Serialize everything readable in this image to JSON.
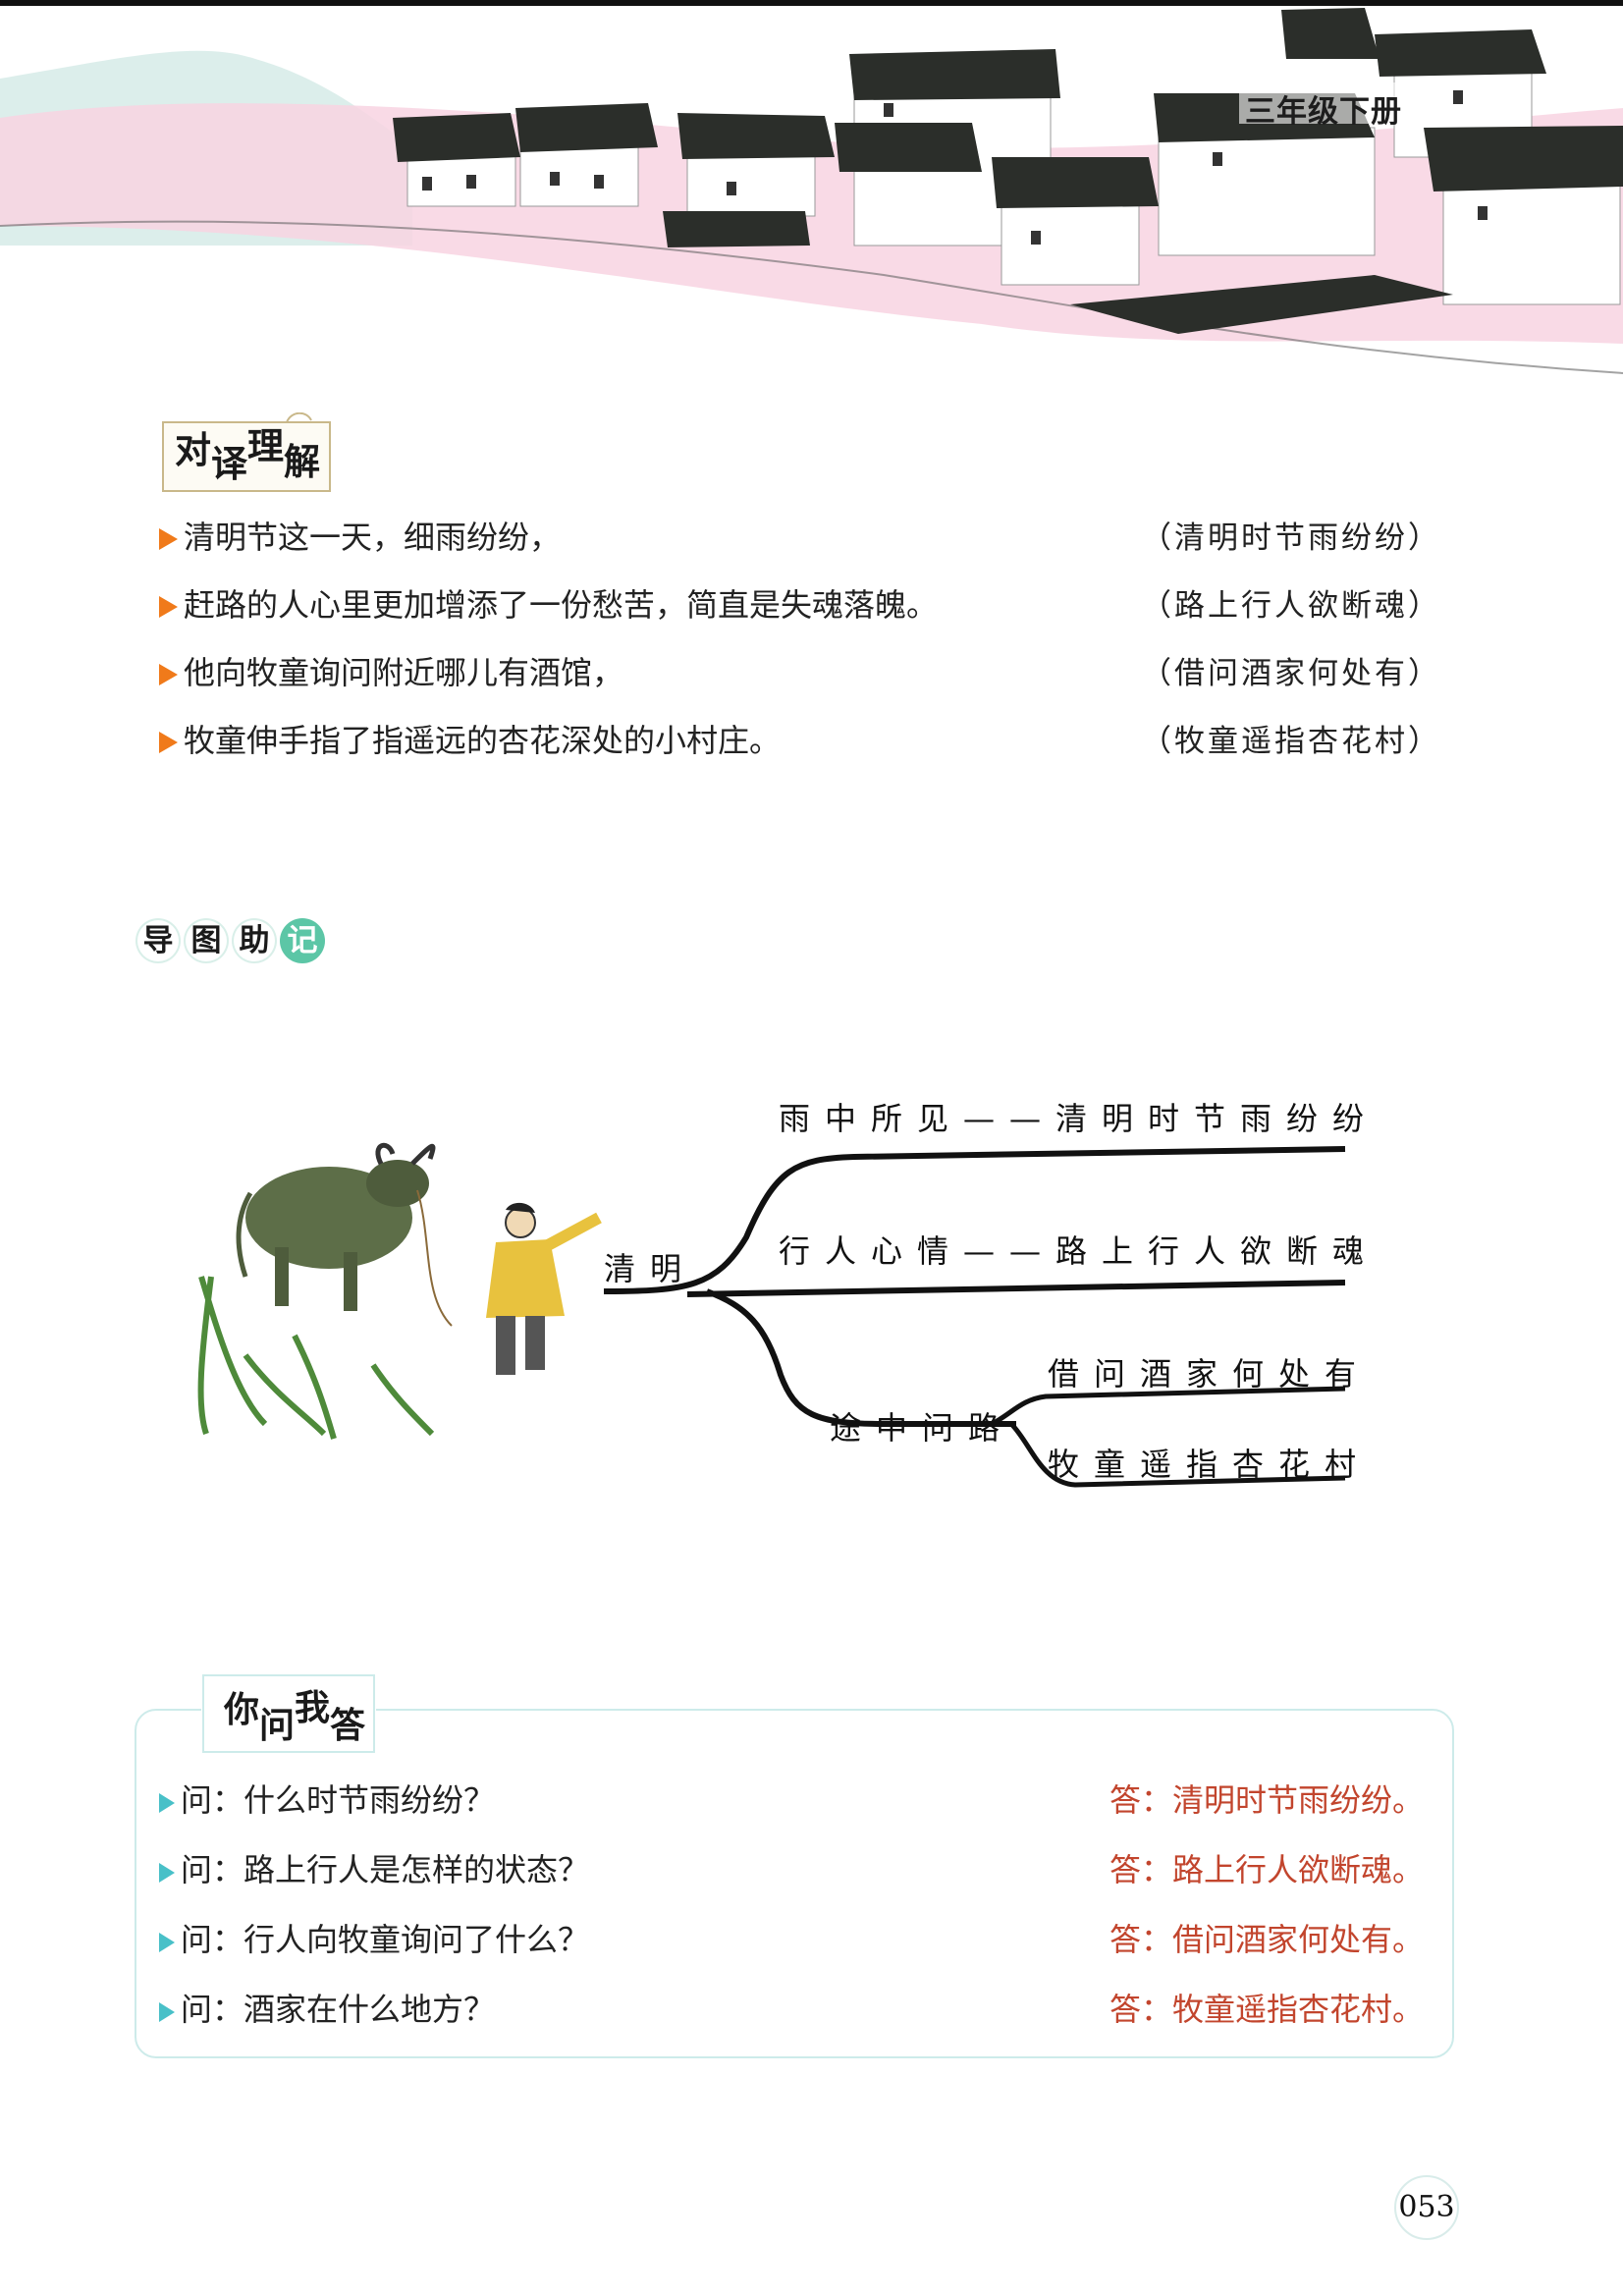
{
  "header": {
    "grade_label": "三年级下册"
  },
  "section_translation": {
    "title_chars": [
      "对",
      "译",
      "理",
      "解"
    ],
    "rows": [
      {
        "text": "清明节这一天，细雨纷纷，",
        "original": "（清明时节雨纷纷）"
      },
      {
        "text": "赶路的人心里更加增添了一份愁苦，简直是失魂落魄。",
        "original": "（路上行人欲断魂）"
      },
      {
        "text": "他向牧童询问附近哪儿有酒馆，",
        "original": "（借问酒家何处有）"
      },
      {
        "text": "牧童伸手指了指遥远的杏花深处的小村庄。",
        "original": "（牧童遥指杏花村）"
      }
    ]
  },
  "section_mindmap": {
    "title_chars": [
      "导",
      "图",
      "助",
      "记"
    ],
    "root": "清明",
    "branch1": "雨中所见——清明时节雨纷纷",
    "branch2": "行人心情——路上行人欲断魂",
    "branch3": "途中问路",
    "leaf1": "借问酒家何处有",
    "leaf2": "牧童遥指杏花村"
  },
  "section_qa": {
    "title_chars": [
      "你",
      "问",
      "我",
      "答"
    ],
    "rows": [
      {
        "q": "问：什么时节雨纷纷？",
        "a": "答：清明时节雨纷纷。"
      },
      {
        "q": "问：路上行人是怎样的状态？",
        "a": "答：路上行人欲断魂。"
      },
      {
        "q": "问：行人向牧童询问了什么？",
        "a": "答：借问酒家何处有。"
      },
      {
        "q": "问：酒家在什么地方？",
        "a": "答：牧童遥指杏花村。"
      }
    ]
  },
  "page_number": "053",
  "colors": {
    "arrow_orange": "#f07a1a",
    "arrow_teal": "#48c0c8",
    "answer_red": "#c2452d",
    "highlight_green": "#5cc6a6"
  }
}
